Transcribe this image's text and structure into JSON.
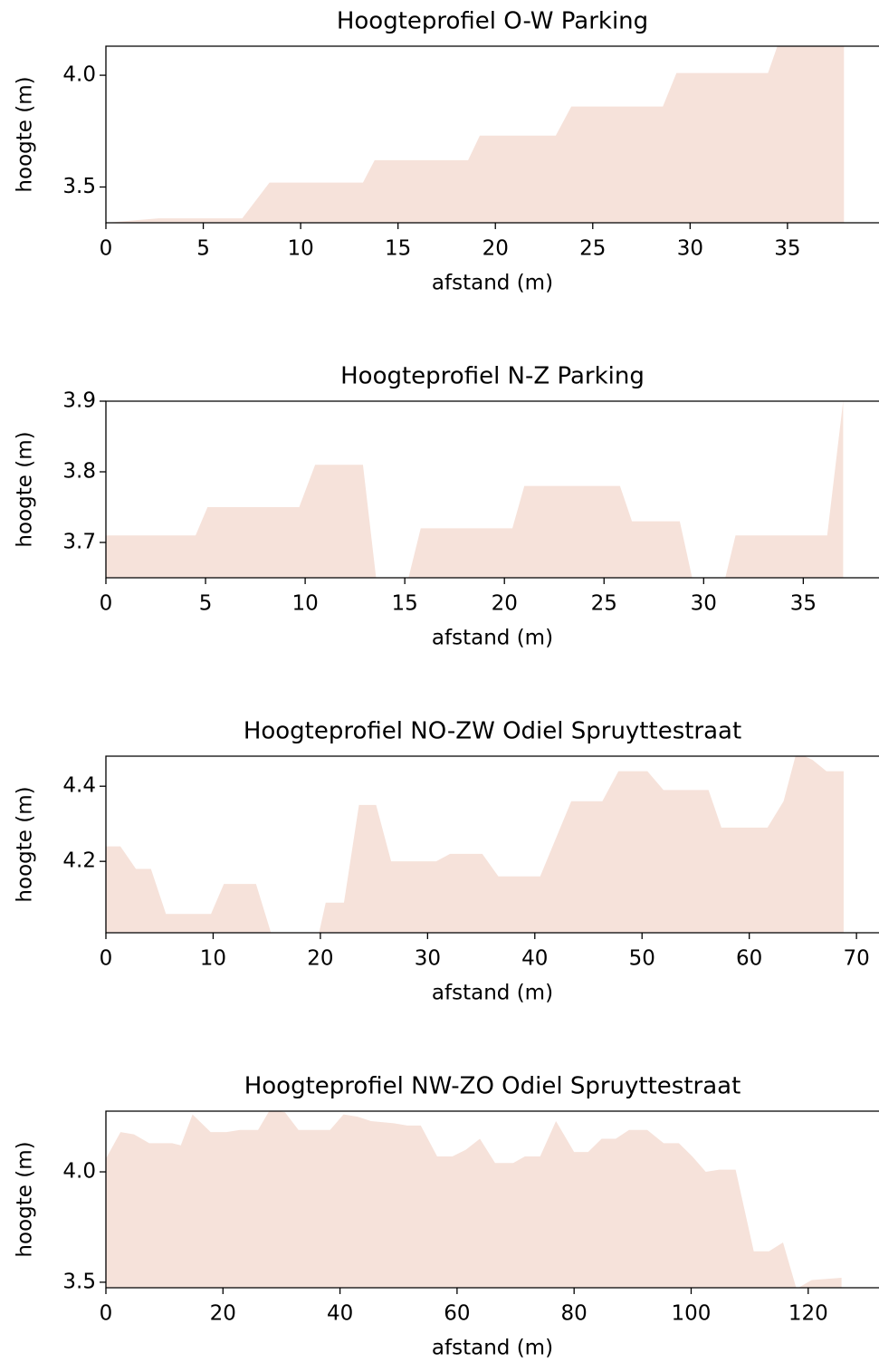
{
  "chart_data": [
    {
      "type": "area",
      "title": "Hoogteprofiel O-W Parking",
      "xlabel": "afstand (m)",
      "ylabel": "hoogte (m)",
      "color": "#f6e2da",
      "x": [
        0,
        2.7,
        7.0,
        8.4,
        13.2,
        13.8,
        18.6,
        19.2,
        23.1,
        23.9,
        28.6,
        29.3,
        34.0,
        34.6,
        37.9
      ],
      "values": [
        3.34,
        3.36,
        3.36,
        3.52,
        3.52,
        3.62,
        3.62,
        3.73,
        3.73,
        3.86,
        3.86,
        4.01,
        4.01,
        4.16,
        4.16
      ],
      "xlim": [
        0,
        39.7
      ],
      "ylim": [
        3.34,
        4.13
      ],
      "xticks": [
        0,
        5,
        10,
        15,
        20,
        25,
        30,
        35
      ],
      "yticks": [
        3.5,
        {
          "value": 4,
          "label": "4.0"
        }
      ]
    },
    {
      "type": "area",
      "title": "Hoogteprofiel N-Z Parking",
      "xlabel": "afstand (m)",
      "ylabel": "hoogte (m)",
      "color": "#f6e2da",
      "x": [
        0,
        4.5,
        5.1,
        9.7,
        10.5,
        12.9,
        13.6,
        15.1,
        15.8,
        20.4,
        21.0,
        25.8,
        26.4,
        28.8,
        29.5,
        31.0,
        31.6,
        36.2,
        37.0
      ],
      "values": [
        3.71,
        3.71,
        3.75,
        3.75,
        3.81,
        3.81,
        3.64,
        3.64,
        3.72,
        3.72,
        3.78,
        3.78,
        3.73,
        3.73,
        3.64,
        3.64,
        3.71,
        3.71,
        3.9
      ],
      "xlim": [
        0,
        38.8
      ],
      "ylim": [
        3.65,
        3.9
      ],
      "xticks": [
        0,
        5,
        10,
        15,
        20,
        25,
        30,
        35
      ],
      "yticks": [
        3.7,
        3.8,
        3.9
      ]
    },
    {
      "type": "area",
      "title": "Hoogteprofiel NO-ZW Odiel Spruyttestraat",
      "xlabel": "afstand (m)",
      "ylabel": "hoogte (m)",
      "color": "#f6e2da",
      "x": [
        0,
        1.35,
        2.8,
        4.2,
        5.6,
        9.8,
        11.0,
        14.0,
        15.5,
        19.8,
        20.5,
        22.2,
        23.6,
        25.2,
        26.6,
        30.8,
        32.1,
        35.1,
        36.6,
        40.5,
        43.4,
        46.3,
        47.8,
        50.5,
        52.0,
        56.2,
        57.4,
        61.7,
        63.2,
        64.4,
        65.9,
        67.2,
        68.8
      ],
      "values": [
        4.24,
        4.24,
        4.18,
        4.18,
        4.06,
        4.06,
        4.14,
        4.14,
        4.0,
        4.0,
        4.09,
        4.09,
        4.35,
        4.35,
        4.2,
        4.2,
        4.22,
        4.22,
        4.16,
        4.16,
        4.36,
        4.36,
        4.44,
        4.44,
        4.39,
        4.39,
        4.29,
        4.29,
        4.36,
        4.49,
        4.47,
        4.44,
        4.44
      ],
      "xlim": [
        0,
        72.1
      ],
      "ylim": [
        4.01,
        4.48
      ],
      "xticks": [
        0,
        10,
        20,
        30,
        40,
        50,
        60,
        70
      ],
      "yticks": [
        4.2,
        4.4
      ]
    },
    {
      "type": "area",
      "title": "Hoogteprofiel NW-ZO Odiel Spruyttestraat",
      "xlabel": "afstand (m)",
      "ylabel": "hoogte (m)",
      "color": "#f6e2da",
      "x": [
        0,
        2.5,
        4.8,
        7.4,
        11.3,
        12.8,
        14.8,
        17.9,
        20.6,
        22.9,
        26.0,
        28.0,
        30.6,
        32.9,
        38.3,
        40.6,
        43.0,
        45.3,
        49.2,
        51.5,
        53.8,
        56.6,
        59.2,
        61.5,
        63.9,
        66.5,
        69.6,
        71.6,
        74.2,
        76.9,
        80.0,
        82.4,
        84.7,
        87.1,
        89.4,
        92.5,
        95.3,
        97.9,
        100.2,
        102.5,
        104.8,
        107.6,
        110.7,
        113.3,
        115.7,
        118.0,
        120.6,
        125.7
      ],
      "values": [
        4.06,
        4.18,
        4.17,
        4.13,
        4.13,
        4.12,
        4.26,
        4.18,
        4.18,
        4.19,
        4.19,
        4.28,
        4.27,
        4.19,
        4.19,
        4.26,
        4.25,
        4.23,
        4.22,
        4.21,
        4.21,
        4.07,
        4.07,
        4.1,
        4.15,
        4.04,
        4.04,
        4.07,
        4.07,
        4.23,
        4.09,
        4.09,
        4.15,
        4.15,
        4.19,
        4.19,
        4.13,
        4.13,
        4.07,
        4.0,
        4.01,
        4.01,
        3.64,
        3.64,
        3.68,
        3.47,
        3.51,
        3.52
      ],
      "xlim": [
        0,
        132.1
      ],
      "ylim": [
        3.475,
        4.275
      ],
      "xticks": [
        0,
        20,
        40,
        60,
        80,
        100,
        120
      ],
      "yticks": [
        3.5,
        {
          "value": 4,
          "label": "4.0"
        }
      ]
    }
  ]
}
